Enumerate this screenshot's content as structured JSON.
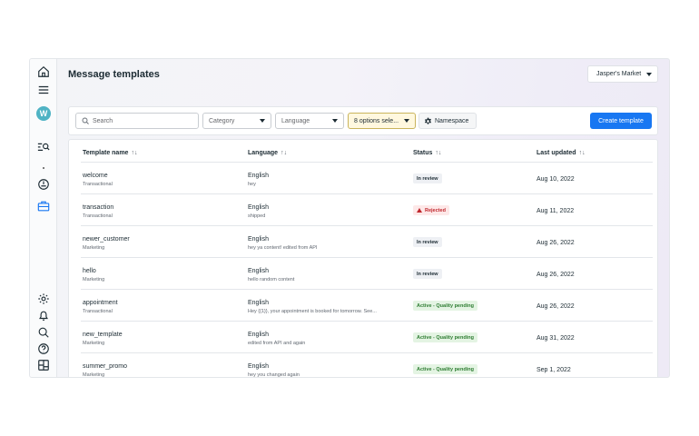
{
  "header": {
    "title": "Message templates",
    "account": "Jasper's Market"
  },
  "sidebar": {
    "avatar_letter": "W",
    "icons": [
      "home-icon",
      "menu-icon",
      "list-search-icon",
      "clock-icon",
      "briefcase-icon",
      "gear-icon",
      "bell-icon",
      "search-icon",
      "help-icon",
      "layout-icon"
    ]
  },
  "filters": {
    "search_placeholder": "Search",
    "category": "Category",
    "language": "Language",
    "options": "8 options sele...",
    "namespace": "Namespace",
    "create_label": "Create template"
  },
  "table": {
    "columns": [
      "Template name",
      "Language",
      "Status",
      "Last updated"
    ],
    "sort_glyph": "↑↓",
    "rows": [
      {
        "name": "welcome",
        "category": "Transactional",
        "language": "English",
        "preview": "hey",
        "status": "In review",
        "status_type": "review",
        "updated": "Aug 10, 2022"
      },
      {
        "name": "transaction",
        "category": "Transactional",
        "language": "English",
        "preview": "shipped",
        "status": "Rejected",
        "status_type": "rejected",
        "updated": "Aug 11, 2022"
      },
      {
        "name": "newer_customer",
        "category": "Marketing",
        "language": "English",
        "preview": "hey ya content! edited from API",
        "status": "In review",
        "status_type": "review",
        "updated": "Aug 26, 2022"
      },
      {
        "name": "hello",
        "category": "Marketing",
        "language": "English",
        "preview": "hello random content",
        "status": "In review",
        "status_type": "review",
        "updated": "Aug 26, 2022"
      },
      {
        "name": "appointment",
        "category": "Transactional",
        "language": "English",
        "preview": "Hey {{1}}, your appointment is booked for tomorrow. See...",
        "status": "Active - Quality pending",
        "status_type": "active",
        "updated": "Aug 26, 2022"
      },
      {
        "name": "new_template",
        "category": "Marketing",
        "language": "English",
        "preview": "edited from API and again",
        "status": "Active - Quality pending",
        "status_type": "active",
        "updated": "Aug 31, 2022"
      },
      {
        "name": "summer_promo",
        "category": "Marketing",
        "language": "English",
        "preview": "hey you changed again",
        "status": "Active - Quality pending",
        "status_type": "active",
        "updated": "Sep 1, 2022"
      }
    ]
  },
  "colors": {
    "accent": "#1877f2",
    "review": "#eef0f4",
    "rejected": "#c0272d",
    "active": "#2e7d32"
  }
}
